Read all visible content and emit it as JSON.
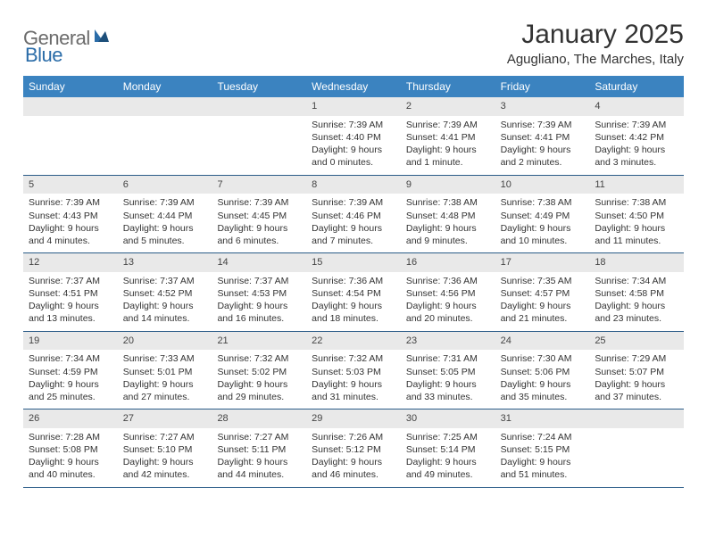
{
  "logo": {
    "text1": "General",
    "text2": "Blue"
  },
  "title": "January 2025",
  "location": "Agugliano, The Marches, Italy",
  "colors": {
    "header_bg": "#3b83c0",
    "header_text": "#ffffff",
    "daynum_bg": "#e9e9e9",
    "row_border": "#2b5c88",
    "logo_gray": "#6b6b6b",
    "logo_blue": "#2a6ca8"
  },
  "daysOfWeek": [
    "Sunday",
    "Monday",
    "Tuesday",
    "Wednesday",
    "Thursday",
    "Friday",
    "Saturday"
  ],
  "weeks": [
    [
      {
        "n": "",
        "sr": "",
        "ss": "",
        "dl1": "",
        "dl2": ""
      },
      {
        "n": "",
        "sr": "",
        "ss": "",
        "dl1": "",
        "dl2": ""
      },
      {
        "n": "",
        "sr": "",
        "ss": "",
        "dl1": "",
        "dl2": ""
      },
      {
        "n": "1",
        "sr": "Sunrise: 7:39 AM",
        "ss": "Sunset: 4:40 PM",
        "dl1": "Daylight: 9 hours",
        "dl2": "and 0 minutes."
      },
      {
        "n": "2",
        "sr": "Sunrise: 7:39 AM",
        "ss": "Sunset: 4:41 PM",
        "dl1": "Daylight: 9 hours",
        "dl2": "and 1 minute."
      },
      {
        "n": "3",
        "sr": "Sunrise: 7:39 AM",
        "ss": "Sunset: 4:41 PM",
        "dl1": "Daylight: 9 hours",
        "dl2": "and 2 minutes."
      },
      {
        "n": "4",
        "sr": "Sunrise: 7:39 AM",
        "ss": "Sunset: 4:42 PM",
        "dl1": "Daylight: 9 hours",
        "dl2": "and 3 minutes."
      }
    ],
    [
      {
        "n": "5",
        "sr": "Sunrise: 7:39 AM",
        "ss": "Sunset: 4:43 PM",
        "dl1": "Daylight: 9 hours",
        "dl2": "and 4 minutes."
      },
      {
        "n": "6",
        "sr": "Sunrise: 7:39 AM",
        "ss": "Sunset: 4:44 PM",
        "dl1": "Daylight: 9 hours",
        "dl2": "and 5 minutes."
      },
      {
        "n": "7",
        "sr": "Sunrise: 7:39 AM",
        "ss": "Sunset: 4:45 PM",
        "dl1": "Daylight: 9 hours",
        "dl2": "and 6 minutes."
      },
      {
        "n": "8",
        "sr": "Sunrise: 7:39 AM",
        "ss": "Sunset: 4:46 PM",
        "dl1": "Daylight: 9 hours",
        "dl2": "and 7 minutes."
      },
      {
        "n": "9",
        "sr": "Sunrise: 7:38 AM",
        "ss": "Sunset: 4:48 PM",
        "dl1": "Daylight: 9 hours",
        "dl2": "and 9 minutes."
      },
      {
        "n": "10",
        "sr": "Sunrise: 7:38 AM",
        "ss": "Sunset: 4:49 PM",
        "dl1": "Daylight: 9 hours",
        "dl2": "and 10 minutes."
      },
      {
        "n": "11",
        "sr": "Sunrise: 7:38 AM",
        "ss": "Sunset: 4:50 PM",
        "dl1": "Daylight: 9 hours",
        "dl2": "and 11 minutes."
      }
    ],
    [
      {
        "n": "12",
        "sr": "Sunrise: 7:37 AM",
        "ss": "Sunset: 4:51 PM",
        "dl1": "Daylight: 9 hours",
        "dl2": "and 13 minutes."
      },
      {
        "n": "13",
        "sr": "Sunrise: 7:37 AM",
        "ss": "Sunset: 4:52 PM",
        "dl1": "Daylight: 9 hours",
        "dl2": "and 14 minutes."
      },
      {
        "n": "14",
        "sr": "Sunrise: 7:37 AM",
        "ss": "Sunset: 4:53 PM",
        "dl1": "Daylight: 9 hours",
        "dl2": "and 16 minutes."
      },
      {
        "n": "15",
        "sr": "Sunrise: 7:36 AM",
        "ss": "Sunset: 4:54 PM",
        "dl1": "Daylight: 9 hours",
        "dl2": "and 18 minutes."
      },
      {
        "n": "16",
        "sr": "Sunrise: 7:36 AM",
        "ss": "Sunset: 4:56 PM",
        "dl1": "Daylight: 9 hours",
        "dl2": "and 20 minutes."
      },
      {
        "n": "17",
        "sr": "Sunrise: 7:35 AM",
        "ss": "Sunset: 4:57 PM",
        "dl1": "Daylight: 9 hours",
        "dl2": "and 21 minutes."
      },
      {
        "n": "18",
        "sr": "Sunrise: 7:34 AM",
        "ss": "Sunset: 4:58 PM",
        "dl1": "Daylight: 9 hours",
        "dl2": "and 23 minutes."
      }
    ],
    [
      {
        "n": "19",
        "sr": "Sunrise: 7:34 AM",
        "ss": "Sunset: 4:59 PM",
        "dl1": "Daylight: 9 hours",
        "dl2": "and 25 minutes."
      },
      {
        "n": "20",
        "sr": "Sunrise: 7:33 AM",
        "ss": "Sunset: 5:01 PM",
        "dl1": "Daylight: 9 hours",
        "dl2": "and 27 minutes."
      },
      {
        "n": "21",
        "sr": "Sunrise: 7:32 AM",
        "ss": "Sunset: 5:02 PM",
        "dl1": "Daylight: 9 hours",
        "dl2": "and 29 minutes."
      },
      {
        "n": "22",
        "sr": "Sunrise: 7:32 AM",
        "ss": "Sunset: 5:03 PM",
        "dl1": "Daylight: 9 hours",
        "dl2": "and 31 minutes."
      },
      {
        "n": "23",
        "sr": "Sunrise: 7:31 AM",
        "ss": "Sunset: 5:05 PM",
        "dl1": "Daylight: 9 hours",
        "dl2": "and 33 minutes."
      },
      {
        "n": "24",
        "sr": "Sunrise: 7:30 AM",
        "ss": "Sunset: 5:06 PM",
        "dl1": "Daylight: 9 hours",
        "dl2": "and 35 minutes."
      },
      {
        "n": "25",
        "sr": "Sunrise: 7:29 AM",
        "ss": "Sunset: 5:07 PM",
        "dl1": "Daylight: 9 hours",
        "dl2": "and 37 minutes."
      }
    ],
    [
      {
        "n": "26",
        "sr": "Sunrise: 7:28 AM",
        "ss": "Sunset: 5:08 PM",
        "dl1": "Daylight: 9 hours",
        "dl2": "and 40 minutes."
      },
      {
        "n": "27",
        "sr": "Sunrise: 7:27 AM",
        "ss": "Sunset: 5:10 PM",
        "dl1": "Daylight: 9 hours",
        "dl2": "and 42 minutes."
      },
      {
        "n": "28",
        "sr": "Sunrise: 7:27 AM",
        "ss": "Sunset: 5:11 PM",
        "dl1": "Daylight: 9 hours",
        "dl2": "and 44 minutes."
      },
      {
        "n": "29",
        "sr": "Sunrise: 7:26 AM",
        "ss": "Sunset: 5:12 PM",
        "dl1": "Daylight: 9 hours",
        "dl2": "and 46 minutes."
      },
      {
        "n": "30",
        "sr": "Sunrise: 7:25 AM",
        "ss": "Sunset: 5:14 PM",
        "dl1": "Daylight: 9 hours",
        "dl2": "and 49 minutes."
      },
      {
        "n": "31",
        "sr": "Sunrise: 7:24 AM",
        "ss": "Sunset: 5:15 PM",
        "dl1": "Daylight: 9 hours",
        "dl2": "and 51 minutes."
      },
      {
        "n": "",
        "sr": "",
        "ss": "",
        "dl1": "",
        "dl2": ""
      }
    ]
  ]
}
